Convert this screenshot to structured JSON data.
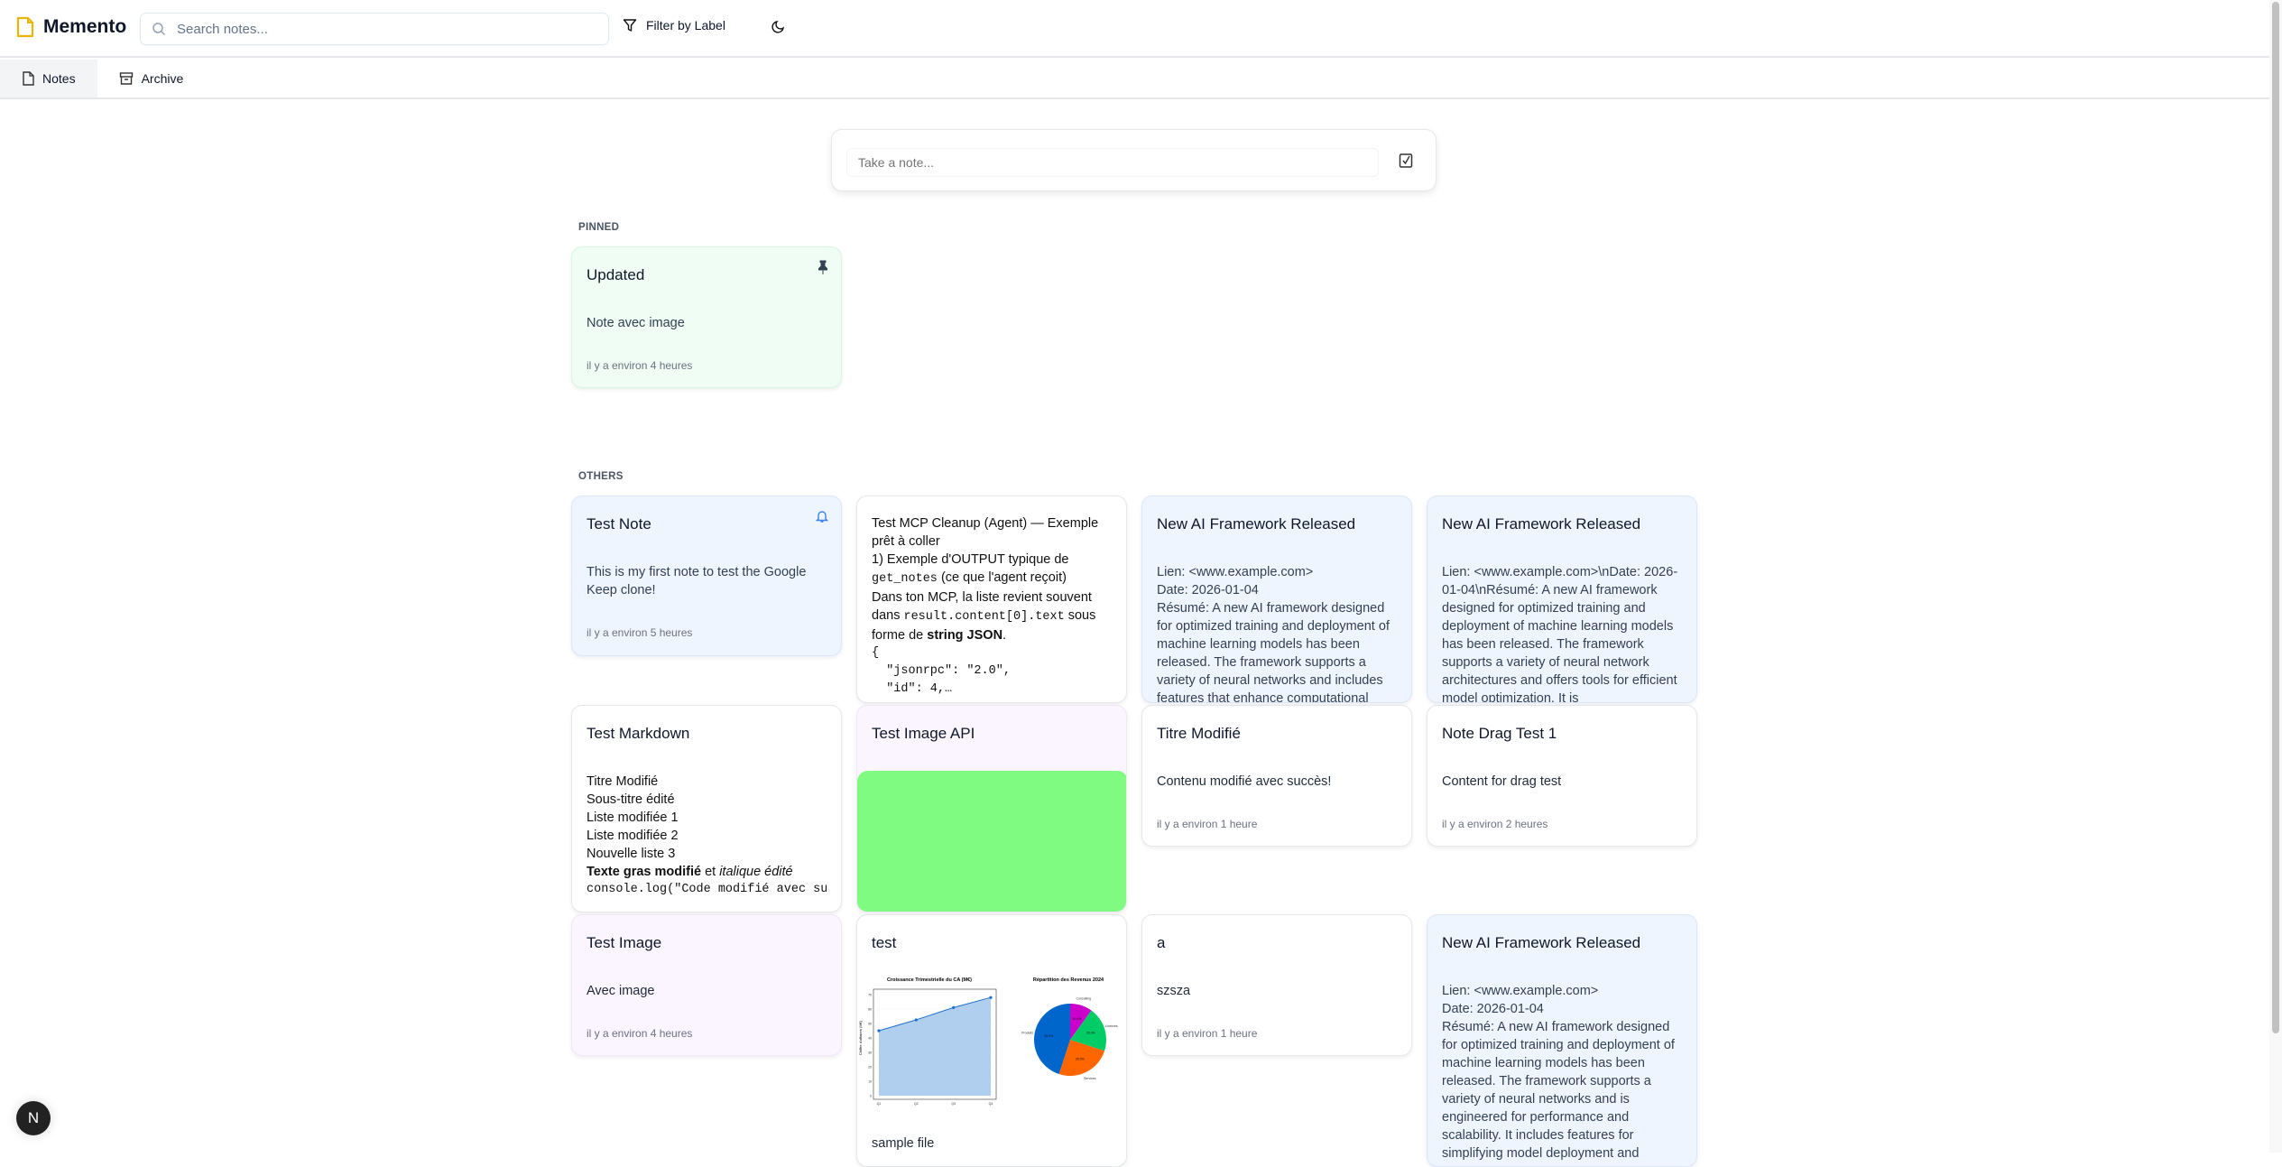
{
  "app": {
    "name": "Memento",
    "logo_color": "#eab308"
  },
  "header": {
    "search_placeholder": "Search notes...",
    "filter_label": "Filter by Label",
    "theme_icon": "moon-icon"
  },
  "tabs": [
    {
      "label": "Notes",
      "icon": "file-icon",
      "active": true
    },
    {
      "label": "Archive",
      "icon": "archive-icon",
      "active": false
    }
  ],
  "composer": {
    "placeholder": "Take a note...",
    "checklist_icon": "checkbox-icon"
  },
  "pinned": {
    "label": "PINNED",
    "notes": [
      {
        "title": "Updated",
        "body": "Note avec image",
        "time": "il y a environ 4 heures",
        "color": "#effdf4",
        "icon": "pin-icon"
      }
    ]
  },
  "others": {
    "label": "OTHERS",
    "notes": [
      {
        "title": "Test Note",
        "body": "This is my first note to test the Google Keep clone!",
        "time": "il y a environ 5 heures",
        "icon": "bell-icon"
      },
      {
        "lines": [
          "Test MCP Cleanup (Agent) — Exemple prêt à coller",
          "1) Exemple d'OUTPUT typique de",
          "get_notes",
          " (ce que l'agent reçoit)",
          "Dans ton MCP, la liste revient souvent dans ",
          "result.content[0].text",
          " sous forme de ",
          "string JSON",
          "."
        ],
        "json": [
          "{",
          "  \"jsonrpc\": \"2.0\",",
          "  \"id\": 4,…"
        ]
      },
      {
        "title": "New AI Framework Released",
        "body": [
          "Lien: <www.example.com>",
          "Date: 2026-01-04",
          "Résumé: A new AI framework designed for optimized training and deployment of machine learning models has been released. The framework supports a variety of neural networks and includes features that enhance computational"
        ]
      },
      {
        "title": "New AI Framework Released",
        "body": [
          "Lien: <www.example.com>\\nDate: 2026-01-04\\nRésumé: A new AI framework designed for optimized training and deployment of machine learning models has been released. The framework supports a variety of neural network architectures and offers tools for efficient model optimization. It is"
        ]
      },
      {
        "title": "Test Markdown",
        "body": [
          "Titre Modifié",
          "Sous-titre édité",
          "Liste modifiée 1",
          "Liste modifiée 2",
          "Nouvelle liste 3"
        ],
        "bold": "Texte gras modifié",
        "mid": " et ",
        "italic": "italique édité",
        "code": "console.log(\"Code modifié avec succès\")"
      },
      {
        "title": "Test Image API",
        "image_color": "#80fb82"
      },
      {
        "title": "Titre Modifié",
        "body": "Contenu modifié avec succès!",
        "time": "il y a environ 1 heure"
      },
      {
        "title": "Note Drag Test 1",
        "body": "Content for drag test",
        "time": "il y a environ 2 heures"
      },
      {
        "title": "Test Image",
        "body": "Avec image",
        "time": "il y a environ 4 heures"
      },
      {
        "title": "test",
        "caption": "sample file",
        "image": {
          "line_chart": {
            "title": "Croissance Trimestrielle du CA (M€)",
            "ylabel": "Chiffre d'affaires (M€)",
            "categories": [
              "Q1",
              "Q2",
              "Q3",
              "Q4"
            ],
            "values": [
              45,
              52.5,
              61,
              68
            ],
            "ylim": [
              0,
              70
            ],
            "yticks": [
              0,
              10,
              20,
              30,
              40,
              50,
              60,
              70
            ],
            "color": "#1f6fd0"
          },
          "pie_chart": {
            "title": "Répartition des Revenus 2024",
            "slices": [
              {
                "label": "Produits",
                "value": 45,
                "text": "45.0%",
                "color": "#0066cc"
              },
              {
                "label": "Services",
                "value": 25,
                "text": "25.0%",
                "color": "#ff6600"
              },
              {
                "label": "Licences",
                "value": 20,
                "text": "20.0%",
                "color": "#00cc66"
              },
              {
                "label": "Consulting",
                "value": 10,
                "text": "10.0%",
                "color": "#cc00cc"
              }
            ]
          }
        }
      },
      {
        "title": "a",
        "body": "szsza",
        "time": "il y a environ 1 heure"
      },
      {
        "title": "New AI Framework Released",
        "body": [
          "Lien: <www.example.com>",
          "Date: 2026-01-04",
          "Résumé: A new AI framework designed for optimized training and deployment of machine learning models has been released. The framework supports a variety of neural networks and is engineered for performance and scalability. It includes features for simplifying model deployment and"
        ]
      }
    ]
  },
  "dev_badge": "N"
}
